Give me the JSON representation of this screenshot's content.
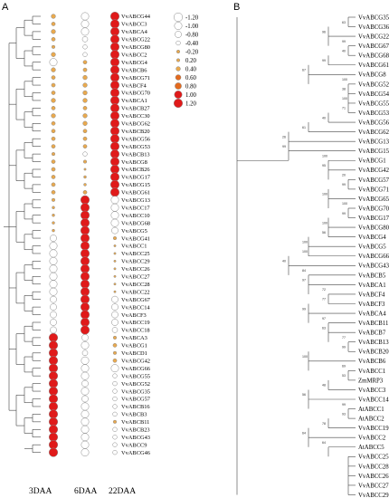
{
  "panel_a": {
    "label": "A",
    "columns": [
      "3DAA",
      "6DAA",
      "22DAA"
    ],
    "genes": [
      "VvABCG44",
      "VvABCC3",
      "VvABCA4",
      "VvABCG22",
      "VvABCG80",
      "VvABCC2",
      "VvABCG4",
      "VvABCB6",
      "VvABCG71",
      "VvABCF4",
      "VvABCG70",
      "VvABCA1",
      "VvABCB27",
      "VvABCC30",
      "VvABCG62",
      "VvABCB20",
      "VvABCG56",
      "VvABCG53",
      "VvABCB13",
      "VvABCG8",
      "VvABCB26",
      "VvABCG17",
      "VvABCG15",
      "VvABCG61",
      "VvABCG13",
      "VvABCC17",
      "VvABCC10",
      "VvABCG68",
      "VvABCG5",
      "VvABCG41",
      "VvABCC1",
      "VvABCC25",
      "VvABCC29",
      "VvABCC26",
      "VvABCC27",
      "VvABCC28",
      "VvABCC22",
      "VvABCG67",
      "VvABCC14",
      "VvABCF3",
      "VvABCC19",
      "VvABCC18",
      "VvABCA3",
      "VvABCG1",
      "VvABCD1",
      "VvABCG42",
      "VvABCG66",
      "VvABCG55",
      "VvABCG52",
      "VvABCG35",
      "VvABCG57",
      "VvABCB16",
      "VvABCB3",
      "VvABCB11",
      "VvABCB23",
      "VvABCG43",
      "VvABCC9",
      "VvABCG46"
    ],
    "values_3daa": [
      0.4,
      0.3,
      0.4,
      0.3,
      0.2,
      0.4,
      -1.0,
      0.4,
      0.3,
      0.3,
      0.3,
      0.4,
      0.3,
      0.4,
      0.3,
      0.3,
      0.3,
      0.3,
      -0.2,
      0.3,
      0.3,
      0.3,
      0.3,
      0.3,
      0.2,
      0.1,
      0.1,
      0.1,
      0.1,
      -0.8,
      -1.0,
      -1.0,
      -1.0,
      -1.0,
      -1.0,
      -1.0,
      -1.0,
      -0.8,
      -0.8,
      -0.8,
      -0.8,
      -0.8,
      1.2,
      1.2,
      1.2,
      1.2,
      1.2,
      1.2,
      1.2,
      1.2,
      1.2,
      1.2,
      1.2,
      1.2,
      1.2,
      1.2,
      1.2,
      1.2
    ],
    "values_6daa": [
      -1.0,
      -1.0,
      -1.0,
      -0.6,
      -0.4,
      -0.4,
      0.3,
      0.3,
      0.4,
      0.4,
      0.4,
      0.4,
      0.3,
      0.4,
      0.4,
      0.3,
      0.3,
      0.3,
      -0.4,
      0.2,
      0.0,
      0.1,
      0.1,
      0.3,
      1.2,
      1.2,
      1.2,
      1.2,
      1.2,
      1.2,
      1.2,
      1.2,
      1.2,
      1.2,
      1.2,
      1.2,
      1.2,
      1.2,
      1.2,
      1.2,
      1.2,
      1.2,
      -0.8,
      -1.0,
      -0.6,
      -1.0,
      -1.0,
      -1.0,
      -0.8,
      -1.0,
      -0.8,
      -1.0,
      -1.0,
      -1.0,
      -1.0,
      -1.0,
      -1.0,
      -1.0
    ],
    "values_22daa": [
      1.2,
      1.2,
      1.2,
      1.2,
      1.2,
      1.2,
      1.2,
      1.2,
      1.2,
      1.2,
      1.2,
      1.2,
      1.2,
      1.2,
      1.2,
      1.2,
      1.2,
      1.2,
      1.2,
      1.2,
      1.2,
      1.2,
      1.2,
      1.2,
      -1.0,
      -1.0,
      -1.0,
      -1.0,
      -0.8,
      0.2,
      0.0,
      0.0,
      0.0,
      0.0,
      0.0,
      0.0,
      0.0,
      -0.8,
      -0.8,
      -0.8,
      -0.8,
      -0.6,
      0.2,
      0.3,
      0.2,
      0.3,
      -1.0,
      -0.4,
      -0.4,
      -0.4,
      -0.4,
      -0.4,
      -0.4,
      -0.2,
      -0.4,
      -0.4,
      -0.4,
      -0.4
    ],
    "legend": {
      "values": [
        -1.2,
        -1.0,
        -0.8,
        -0.4,
        -0.2,
        0.2,
        0.4,
        0.6,
        0.8,
        1.0,
        1.2
      ],
      "labels": [
        "-1.20",
        "-1.00",
        "-0.80",
        "-0.40",
        "-0.20",
        "0.20",
        "0.40",
        "0.60",
        "0.80",
        "1.00",
        "1.20"
      ]
    }
  },
  "panel_b": {
    "label": "B",
    "genes": [
      "VvABCG35",
      "VvABCG36",
      "VvABCG22",
      "VvABCG67",
      "VvABCG68",
      "VvABCG61",
      "VvABCG8",
      "VvABCG52",
      "VvABCG54",
      "VvABCG55",
      "VvABCG53",
      "VvABCG56",
      "VvABCG62",
      "VvABCG13",
      "VvABCG15",
      "VvABCG1",
      "VvABCG42",
      "VvABCG57",
      "VvABCG71",
      "VvABCG65",
      "VvABCG70",
      "VvABCG17",
      "VvABCG80",
      "VvABCG4",
      "VvABCG5",
      "VvABCG66",
      "VvABCG43",
      "VvABCB5",
      "VvABCA1",
      "VvABCF4",
      "VvABCF3",
      "VvABCA4",
      "VvABCB11",
      "VvABCB7",
      "VvABCB13",
      "VvABCB20",
      "VvABCB6",
      "VvABCC1",
      "ZmMRP3",
      "VvABCC3",
      "VvABCC14",
      "AtABCC1",
      "AtABCC2",
      "VvABCC19",
      "VvABCC2",
      "AtABCC5",
      "VvABCC25",
      "VvABCC28",
      "VvABCC26",
      "VvABCC27",
      "VvABCC29"
    ],
    "bootstrap_values": [
      "63",
      "96",
      "99",
      "40",
      "99",
      "67",
      "100",
      "38",
      "100",
      "71",
      "40",
      "61",
      "26",
      "99",
      "100",
      "95",
      "20",
      "99",
      "100",
      "100",
      "99",
      "100",
      "56",
      "100",
      "100",
      "40",
      "84",
      "97",
      "72",
      "77",
      "99",
      "97",
      "63",
      "77",
      "99",
      "100",
      "69",
      "53",
      "48",
      "56",
      "99",
      "93",
      "78",
      "64",
      "64"
    ]
  },
  "colors": {
    "fill_high": "#e01a1a",
    "fill_mid": "#e36a1e",
    "fill_low": "#e9a94e",
    "circle_empty": "#ffffff",
    "stroke": "#888888"
  }
}
